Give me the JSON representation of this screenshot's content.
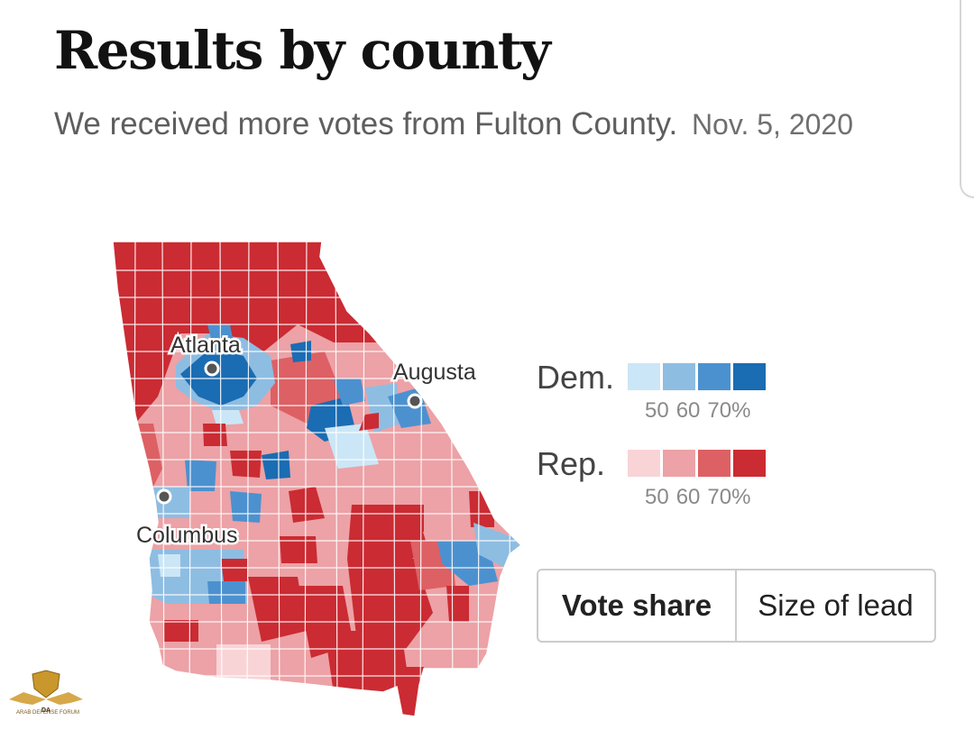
{
  "header": {
    "title": "Results by county",
    "subtitle": "We received more votes from Fulton County.",
    "date": "Nov. 5, 2020"
  },
  "map": {
    "cities": [
      "Atlanta",
      "Augusta",
      "Columbus"
    ]
  },
  "legend": {
    "dem_label": "Dem.",
    "rep_label": "Rep.",
    "dem_colors": [
      "#cbe6f6",
      "#8ebde2",
      "#4c91cf",
      "#1a6cb3"
    ],
    "rep_colors": [
      "#f9d4d7",
      "#eca2a6",
      "#dd6064",
      "#cb2b33"
    ],
    "ticks": [
      "50",
      "60",
      "70%"
    ]
  },
  "toggle": {
    "options": [
      "Vote share",
      "Size of lead"
    ],
    "selected": "Vote share"
  },
  "watermark": {
    "text": "ARAB DEFENSE FORUM"
  }
}
